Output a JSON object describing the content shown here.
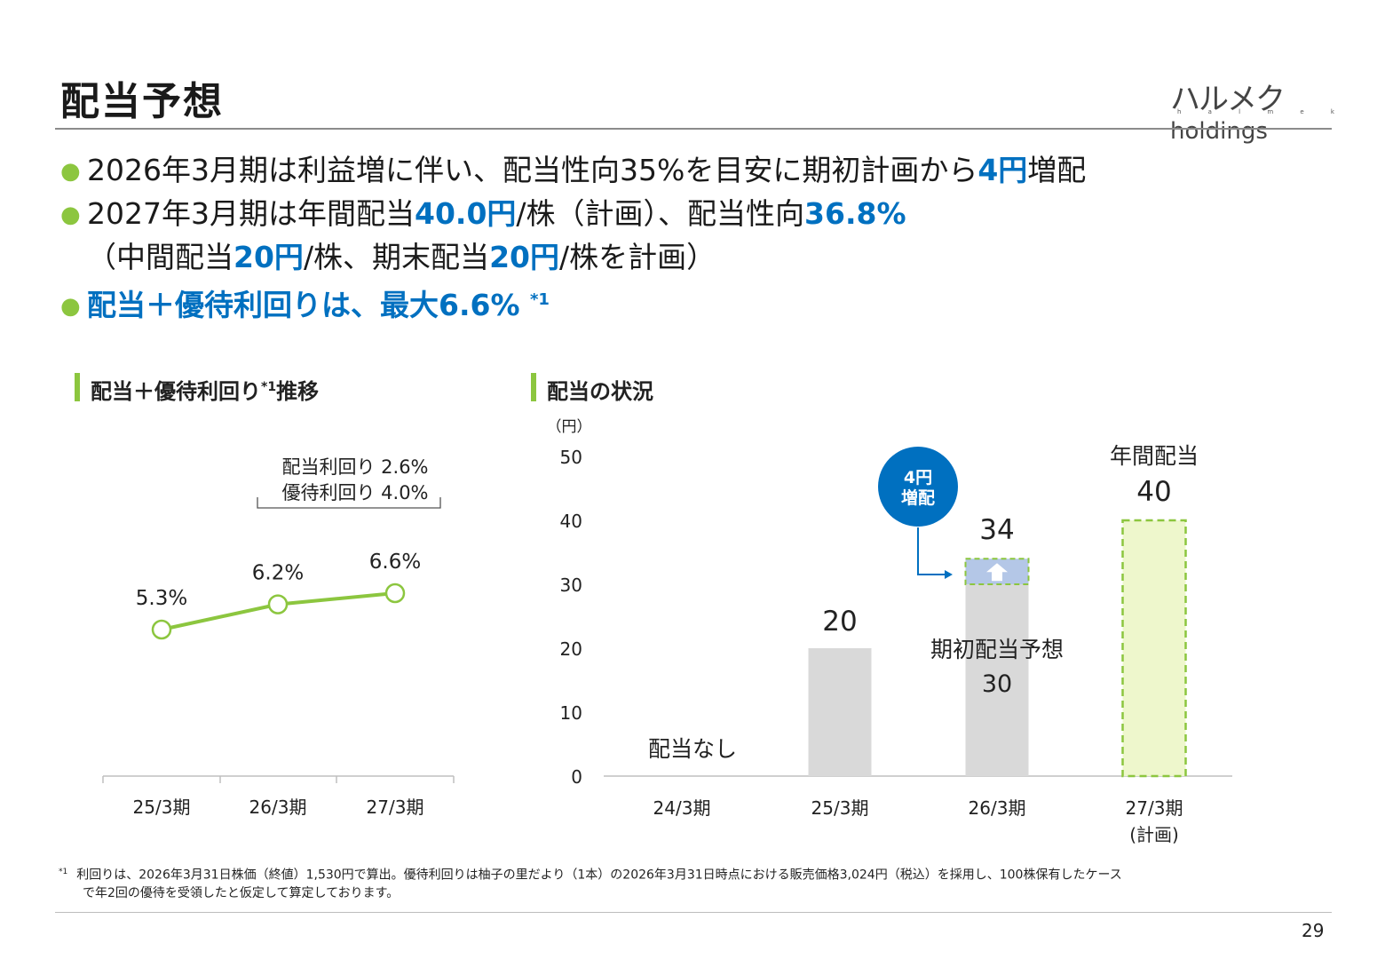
{
  "page": {
    "title": "配当予想",
    "logo_kana": "ハルメク",
    "logo_en": "holdings",
    "logo_sub": "h a l m e k",
    "page_number": "29"
  },
  "bullets": {
    "b1_pre": "2026年3月期は利益増に伴い、配当性向35%を目安に期初計画から",
    "b1_hl": "4円",
    "b1_post": "増配",
    "b2_pre": "2027年3月期は年間配当",
    "b2_hl1": "40.0円",
    "b2_mid": "/株（計画）、配当性向",
    "b2_hl2": "36.8%",
    "b2b_pre": "（中間配当",
    "b2b_hl1": "20円",
    "b2b_mid": "/株、期末配当",
    "b2b_hl2": "20円",
    "b2b_post": "/株を計画）",
    "b3_text": "配当＋優待利回りは、最大6.6% ",
    "b3_sup": "*1"
  },
  "left_section": {
    "title": "配当＋優待利回り",
    "title_sup": "*1",
    "title_post": "推移"
  },
  "right_section": {
    "title": "配当の状況"
  },
  "colors": {
    "accent_green": "#8cc63f",
    "accent_blue": "#0070c0",
    "bar_gray": "#d9d9d9",
    "increase_blue": "#b4c7e7",
    "plan_fill": "#eef7cc",
    "plan_border": "#8cc63f"
  },
  "chart_data": [
    {
      "type": "line",
      "categories": [
        "25/3期",
        "26/3期",
        "27/3期"
      ],
      "series": [
        {
          "values": [
            5.3,
            6.2,
            6.6
          ],
          "labels": [
            "5.3%",
            "6.2%",
            "6.6%"
          ]
        }
      ],
      "annotation": {
        "line1": "配当利回り 2.6%",
        "line2": "優待利回り 4.0%"
      },
      "grid": false
    },
    {
      "type": "bar",
      "unit_label": "（円）",
      "ylim": [
        0,
        50
      ],
      "yticks": [
        "0",
        "10",
        "20",
        "30",
        "40",
        "50"
      ],
      "categories": [
        "24/3期",
        "25/3期",
        "26/3期",
        "27/3期"
      ],
      "category_sub": [
        "",
        "",
        "",
        "(計画)"
      ],
      "values": [
        0,
        20,
        34,
        40
      ],
      "base_30": 30,
      "labels": {
        "no_dividend": "配当なし",
        "v25": "20",
        "v26": "34",
        "initial_label": "期初配当予想",
        "initial_value": "30",
        "annual_label": "年間配当",
        "annual_value": "40",
        "badge_line1": "4円",
        "badge_line2": "増配"
      },
      "grid": false
    }
  ],
  "footnote": {
    "sup": "*1",
    "line1": "利回りは、2026年3月31日株価（終値）1,530円で算出。優待利回りは柚子の里だより（1本）の2026年3月31日時点における販売価格3,024円（税込）を採用し、100株保有したケース",
    "line2": "で年2回の優待を受領したと仮定して算定しております。"
  }
}
